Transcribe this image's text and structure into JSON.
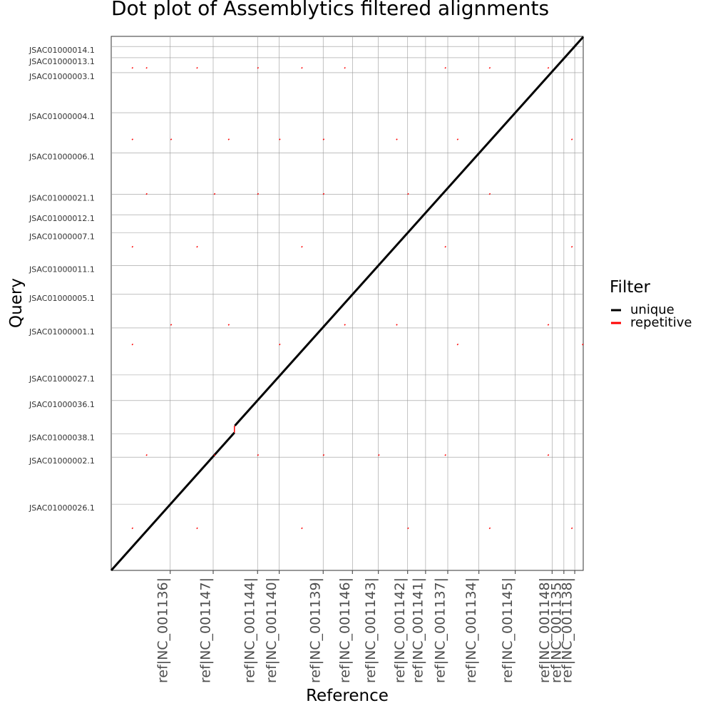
{
  "chart_data": {
    "type": "line",
    "title": "Dot plot of Assemblytics filtered alignments",
    "x_label": "Reference",
    "y_label": "Query",
    "legend_title": "Filter",
    "xlim": [
      0,
      1000
    ],
    "ylim": [
      0,
      1000
    ],
    "grid": true,
    "legend": "right",
    "xticks": [
      {
        "value": 125,
        "label": "ref|NC_001136|"
      },
      {
        "value": 216,
        "label": "ref|NC_001147|"
      },
      {
        "value": 310,
        "label": "ref|NC_001144|"
      },
      {
        "value": 356,
        "label": "ref|NC_001140|"
      },
      {
        "value": 449,
        "label": "ref|NC_001139|"
      },
      {
        "value": 511,
        "label": "ref|NC_001146|"
      },
      {
        "value": 566,
        "label": "ref|NC_001143|"
      },
      {
        "value": 628,
        "label": "ref|NC_001142|"
      },
      {
        "value": 666,
        "label": "ref|NC_001141|"
      },
      {
        "value": 713,
        "label": "ref|NC_001137|"
      },
      {
        "value": 779,
        "label": "ref|NC_001134|"
      },
      {
        "value": 856,
        "label": "ref|NC_001145|"
      },
      {
        "value": 934,
        "label": "ref|NC_001148|"
      },
      {
        "value": 959,
        "label": "ref|NC_001135|"
      },
      {
        "value": 982,
        "label": "ref|NC_001138|"
      }
    ],
    "yticks": [
      {
        "value": 981,
        "label": "JSAC01000014.1"
      },
      {
        "value": 960,
        "label": "JSAC01000013.1"
      },
      {
        "value": 932,
        "label": "JSAC01000003.1"
      },
      {
        "value": 857,
        "label": "JSAC01000004.1"
      },
      {
        "value": 782,
        "label": "JSAC01000006.1"
      },
      {
        "value": 704,
        "label": "JSAC01000021.1"
      },
      {
        "value": 666,
        "label": "JSAC01000012.1"
      },
      {
        "value": 632,
        "label": "JSAC01000007.1"
      },
      {
        "value": 571,
        "label": "JSAC01000011.1"
      },
      {
        "value": 517,
        "label": "JSAC01000005.1"
      },
      {
        "value": 454,
        "label": "JSAC01000001.1"
      },
      {
        "value": 366,
        "label": "JSAC01000027.1"
      },
      {
        "value": 318,
        "label": "JSAC01000036.1"
      },
      {
        "value": 256,
        "label": "JSAC01000038.1"
      },
      {
        "value": 212,
        "label": "JSAC01000002.1"
      },
      {
        "value": 124,
        "label": "JSAC01000026.1"
      }
    ],
    "series": [
      {
        "name": "unique",
        "color": "#000000",
        "width": 3,
        "x": [
          0,
          261,
          null,
          262,
          1000
        ],
        "y": [
          0,
          258,
          null,
          271,
          999
        ]
      },
      {
        "name": "repetitive",
        "color": "#ff0000",
        "width": 1.5,
        "x": [
          261,
          261,
          null,
          44,
          46,
          null,
          74,
          76,
          null,
          181,
          183,
          null,
          310,
          312,
          null,
          403,
          405,
          null,
          494,
          496,
          null,
          707,
          709,
          null,
          801,
          803,
          null,
          925,
          927,
          null,
          44,
          46,
          null,
          126,
          128,
          null,
          248,
          250,
          null,
          356,
          358,
          null,
          449,
          451,
          null,
          604,
          606,
          null,
          733,
          735,
          null,
          975,
          977,
          null,
          74,
          76,
          null,
          218,
          220,
          null,
          310,
          312,
          null,
          449,
          451,
          null,
          628,
          630,
          null,
          801,
          803,
          null,
          44,
          46,
          null,
          181,
          183,
          null,
          403,
          405,
          null,
          707,
          709,
          null,
          975,
          977,
          null,
          126,
          128,
          null,
          248,
          250,
          null,
          494,
          496,
          null,
          604,
          606,
          null,
          925,
          927,
          null,
          44,
          46,
          null,
          356,
          358,
          null,
          733,
          735,
          null,
          998,
          1000,
          null,
          74,
          76,
          null,
          218,
          220,
          null,
          310,
          312,
          null,
          449,
          451,
          null,
          566,
          568,
          null,
          707,
          709,
          null,
          925,
          927,
          null,
          44,
          46,
          null,
          181,
          183,
          null,
          403,
          405,
          null,
          628,
          630,
          null,
          801,
          803,
          null,
          975,
          977
        ],
        "y": [
          258,
          271,
          null,
          940,
          942,
          null,
          940,
          942,
          null,
          940,
          942,
          null,
          940,
          942,
          null,
          940,
          942,
          null,
          940,
          942,
          null,
          940,
          942,
          null,
          940,
          942,
          null,
          940,
          942,
          null,
          806,
          808,
          null,
          806,
          808,
          null,
          806,
          808,
          null,
          806,
          808,
          null,
          806,
          808,
          null,
          806,
          808,
          null,
          806,
          808,
          null,
          806,
          808,
          null,
          704,
          706,
          null,
          704,
          706,
          null,
          704,
          706,
          null,
          704,
          706,
          null,
          704,
          706,
          null,
          704,
          706,
          null,
          605,
          607,
          null,
          605,
          607,
          null,
          605,
          607,
          null,
          605,
          607,
          null,
          605,
          607,
          null,
          459,
          461,
          null,
          459,
          461,
          null,
          459,
          461,
          null,
          459,
          461,
          null,
          459,
          461,
          null,
          422,
          424,
          null,
          422,
          424,
          null,
          422,
          424,
          null,
          422,
          424,
          null,
          215,
          217,
          null,
          215,
          217,
          null,
          215,
          217,
          null,
          215,
          217,
          null,
          215,
          217,
          null,
          215,
          217,
          null,
          215,
          217,
          null,
          78,
          80,
          null,
          78,
          80,
          null,
          78,
          80,
          null,
          78,
          80,
          null,
          78,
          80,
          null,
          78,
          80
        ]
      }
    ]
  }
}
